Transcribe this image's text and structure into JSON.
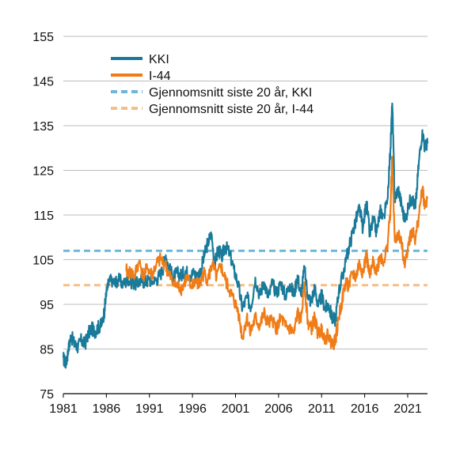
{
  "chart_data": {
    "type": "line",
    "title": "",
    "xlabel": "",
    "ylabel": "",
    "xlim": [
      1981,
      2023.3
    ],
    "ylim": [
      75,
      155
    ],
    "yticks": [
      75,
      85,
      95,
      105,
      115,
      125,
      135,
      145,
      155
    ],
    "xticks": [
      1981,
      1986,
      1991,
      1996,
      2001,
      2006,
      2011,
      2016,
      2021
    ],
    "grid": "horizontal",
    "legend_position": "top-left",
    "series": [
      {
        "name": "KKI",
        "color": "#1a7a9a",
        "style": "solid",
        "points": [
          [
            1981.0,
            83.0
          ],
          [
            1981.3,
            81.5
          ],
          [
            1981.6,
            85.0
          ],
          [
            1981.9,
            88.0
          ],
          [
            1982.3,
            86.0
          ],
          [
            1982.7,
            85.5
          ],
          [
            1983.1,
            87.0
          ],
          [
            1983.5,
            86.0
          ],
          [
            1983.9,
            88.5
          ],
          [
            1984.3,
            89.5
          ],
          [
            1984.7,
            89.0
          ],
          [
            1985.1,
            90.0
          ],
          [
            1985.5,
            90.5
          ],
          [
            1985.8,
            94.0
          ],
          [
            1986.0,
            97.5
          ],
          [
            1986.3,
            100.0
          ],
          [
            1986.7,
            100.5
          ],
          [
            1987.0,
            99.5
          ],
          [
            1987.4,
            100.5
          ],
          [
            1988.0,
            99.5
          ],
          [
            1988.5,
            100.5
          ],
          [
            1989.0,
            100.0
          ],
          [
            1989.5,
            99.5
          ],
          [
            1990.0,
            100.5
          ],
          [
            1990.5,
            100.0
          ],
          [
            1991.0,
            100.5
          ],
          [
            1991.5,
            100.0
          ],
          [
            1992.0,
            101.0
          ],
          [
            1992.5,
            102.5
          ],
          [
            1992.9,
            106.0
          ],
          [
            1993.3,
            103.0
          ],
          [
            1993.8,
            101.0
          ],
          [
            1994.2,
            102.0
          ],
          [
            1994.7,
            101.5
          ],
          [
            1995.2,
            102.5
          ],
          [
            1995.7,
            101.5
          ],
          [
            1996.2,
            102.0
          ],
          [
            1996.6,
            101.0
          ],
          [
            1997.0,
            103.0
          ],
          [
            1997.4,
            106.0
          ],
          [
            1997.8,
            109.0
          ],
          [
            1998.2,
            110.5
          ],
          [
            1998.6,
            104.0
          ],
          [
            1999.0,
            107.5
          ],
          [
            1999.4,
            105.5
          ],
          [
            1999.8,
            108.0
          ],
          [
            2000.3,
            106.5
          ],
          [
            2000.8,
            103.0
          ],
          [
            2001.3,
            99.5
          ],
          [
            2001.8,
            94.0
          ],
          [
            2002.3,
            96.5
          ],
          [
            2002.8,
            94.5
          ],
          [
            2003.3,
            101.0
          ],
          [
            2003.8,
            97.0
          ],
          [
            2004.3,
            100.0
          ],
          [
            2004.8,
            96.5
          ],
          [
            2005.3,
            99.5
          ],
          [
            2005.8,
            97.5
          ],
          [
            2006.3,
            100.0
          ],
          [
            2006.8,
            96.5
          ],
          [
            2007.3,
            99.5
          ],
          [
            2007.8,
            97.0
          ],
          [
            2008.2,
            101.5
          ],
          [
            2008.6,
            97.0
          ],
          [
            2009.0,
            103.0
          ],
          [
            2009.4,
            97.0
          ],
          [
            2009.8,
            95.5
          ],
          [
            2010.2,
            99.0
          ],
          [
            2010.6,
            94.5
          ],
          [
            2011.0,
            97.0
          ],
          [
            2011.4,
            94.0
          ],
          [
            2011.8,
            95.0
          ],
          [
            2012.2,
            92.0
          ],
          [
            2012.6,
            91.5
          ],
          [
            2013.0,
            98.0
          ],
          [
            2013.4,
            101.0
          ],
          [
            2013.8,
            104.5
          ],
          [
            2014.2,
            108.0
          ],
          [
            2014.6,
            111.0
          ],
          [
            2015.0,
            114.0
          ],
          [
            2015.4,
            116.5
          ],
          [
            2015.8,
            112.0
          ],
          [
            2016.2,
            118.0
          ],
          [
            2016.6,
            110.5
          ],
          [
            2017.0,
            114.0
          ],
          [
            2017.4,
            111.0
          ],
          [
            2017.8,
            116.0
          ],
          [
            2018.2,
            115.0
          ],
          [
            2018.6,
            117.5
          ],
          [
            2019.0,
            130.0
          ],
          [
            2019.2,
            140.0
          ],
          [
            2019.5,
            118.5
          ],
          [
            2019.9,
            121.0
          ],
          [
            2020.3,
            117.0
          ],
          [
            2020.7,
            113.5
          ],
          [
            2021.1,
            117.5
          ],
          [
            2021.5,
            119.0
          ],
          [
            2021.9,
            116.5
          ],
          [
            2022.3,
            127.0
          ],
          [
            2022.7,
            134.0
          ],
          [
            2023.0,
            130.0
          ],
          [
            2023.3,
            131.0
          ]
        ]
      },
      {
        "name": "I-44",
        "color": "#ef7c17",
        "style": "solid",
        "points": [
          [
            1988.3,
            102.5
          ],
          [
            1988.8,
            102.0
          ],
          [
            1989.3,
            101.5
          ],
          [
            1989.8,
            104.5
          ],
          [
            1990.3,
            101.5
          ],
          [
            1990.8,
            103.0
          ],
          [
            1991.3,
            101.5
          ],
          [
            1991.8,
            104.0
          ],
          [
            1992.3,
            105.0
          ],
          [
            1992.8,
            104.0
          ],
          [
            1993.3,
            101.5
          ],
          [
            1993.8,
            99.5
          ],
          [
            1994.3,
            99.0
          ],
          [
            1994.8,
            98.5
          ],
          [
            1995.3,
            101.0
          ],
          [
            1995.8,
            99.0
          ],
          [
            1996.3,
            100.5
          ],
          [
            1996.8,
            99.0
          ],
          [
            1997.3,
            102.0
          ],
          [
            1997.8,
            100.5
          ],
          [
            1998.3,
            104.0
          ],
          [
            1998.8,
            101.0
          ],
          [
            1999.3,
            103.5
          ],
          [
            1999.8,
            100.5
          ],
          [
            2000.3,
            98.0
          ],
          [
            2000.8,
            96.0
          ],
          [
            2001.3,
            93.5
          ],
          [
            2001.8,
            87.5
          ],
          [
            2002.3,
            92.0
          ],
          [
            2002.8,
            89.0
          ],
          [
            2003.3,
            92.0
          ],
          [
            2003.8,
            90.0
          ],
          [
            2004.3,
            93.0
          ],
          [
            2004.8,
            90.5
          ],
          [
            2005.3,
            91.5
          ],
          [
            2005.8,
            89.5
          ],
          [
            2006.3,
            92.0
          ],
          [
            2006.8,
            90.0
          ],
          [
            2007.3,
            89.5
          ],
          [
            2007.8,
            88.5
          ],
          [
            2008.2,
            93.0
          ],
          [
            2008.6,
            91.0
          ],
          [
            2009.0,
            100.0
          ],
          [
            2009.4,
            91.0
          ],
          [
            2009.8,
            89.5
          ],
          [
            2010.2,
            92.0
          ],
          [
            2010.6,
            88.0
          ],
          [
            2011.0,
            89.5
          ],
          [
            2011.4,
            87.5
          ],
          [
            2011.8,
            88.0
          ],
          [
            2012.2,
            86.0
          ],
          [
            2012.6,
            87.0
          ],
          [
            2013.0,
            92.0
          ],
          [
            2013.4,
            96.0
          ],
          [
            2013.8,
            100.0
          ],
          [
            2014.2,
            99.0
          ],
          [
            2014.6,
            102.0
          ],
          [
            2015.0,
            101.0
          ],
          [
            2015.4,
            104.5
          ],
          [
            2015.8,
            102.0
          ],
          [
            2016.2,
            106.0
          ],
          [
            2016.6,
            101.0
          ],
          [
            2017.0,
            104.5
          ],
          [
            2017.4,
            102.5
          ],
          [
            2017.8,
            106.0
          ],
          [
            2018.2,
            104.5
          ],
          [
            2018.6,
            107.5
          ],
          [
            2019.0,
            116.0
          ],
          [
            2019.2,
            128.0
          ],
          [
            2019.5,
            109.0
          ],
          [
            2019.9,
            111.0
          ],
          [
            2020.3,
            108.0
          ],
          [
            2020.7,
            104.0
          ],
          [
            2021.1,
            109.0
          ],
          [
            2021.5,
            111.5
          ],
          [
            2021.9,
            109.5
          ],
          [
            2022.3,
            115.0
          ],
          [
            2022.7,
            121.0
          ],
          [
            2023.0,
            117.0
          ],
          [
            2023.3,
            118.5
          ]
        ]
      },
      {
        "name": "Gjennomsnitt siste 20 år, KKI",
        "color": "#6db7d9",
        "style": "dashed",
        "points": [
          [
            1981.0,
            107.0
          ],
          [
            2023.3,
            107.0
          ]
        ]
      },
      {
        "name": "Gjennomsnitt siste 20 år, I-44",
        "color": "#f7be86",
        "style": "dashed",
        "points": [
          [
            1981.0,
            99.3
          ],
          [
            2023.3,
            99.3
          ]
        ]
      }
    ]
  }
}
